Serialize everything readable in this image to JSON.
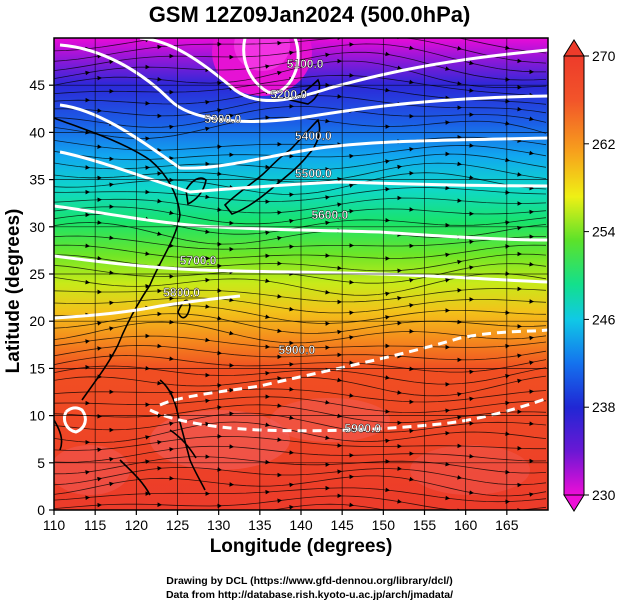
{
  "title": "GSM 12Z09Jan2024 (500.0hPa)",
  "credits": {
    "line1": "Drawing by DCL (https://www.gfd-dennou.org/library/dcl/)",
    "line2": "Data from http://database.rish.kyoto-u.ac.jp/arch/jmadata/"
  },
  "colorbar": {
    "ticks": [
      "270",
      "262",
      "254",
      "246",
      "238",
      "230"
    ]
  },
  "chart_data": {
    "type": "heatmap",
    "xlabel": "Longitude (degrees)",
    "ylabel": "Latitude  (degrees)",
    "xlim": [
      110,
      170
    ],
    "ylim": [
      0,
      50
    ],
    "xticks": [
      "110",
      "115",
      "120",
      "125",
      "130",
      "135",
      "140",
      "145",
      "150",
      "155",
      "160",
      "165"
    ],
    "yticks": [
      "0",
      "5",
      "10",
      "15",
      "20",
      "25",
      "30",
      "35",
      "40",
      "45"
    ],
    "color_scale": {
      "min": 230,
      "max": 270
    },
    "contour_labels": [
      {
        "text": "5100.0",
        "lon": 140.5,
        "lat": 46.8
      },
      {
        "text": "5200.0",
        "lon": 138.5,
        "lat": 43.6
      },
      {
        "text": "5300.0",
        "lon": 130.5,
        "lat": 41.0
      },
      {
        "text": "5400.0",
        "lon": 141.5,
        "lat": 39.2
      },
      {
        "text": "5500.0",
        "lon": 141.5,
        "lat": 35.2
      },
      {
        "text": "5600.0",
        "lon": 143.5,
        "lat": 30.8
      },
      {
        "text": "5700.0",
        "lon": 127.5,
        "lat": 26.0
      },
      {
        "text": "5800.0",
        "lon": 125.5,
        "lat": 22.6
      },
      {
        "text": "5900.0",
        "lon": 139.5,
        "lat": 16.5
      },
      {
        "text": "5900.0",
        "lon": 147.5,
        "lat": 8.2
      }
    ]
  }
}
